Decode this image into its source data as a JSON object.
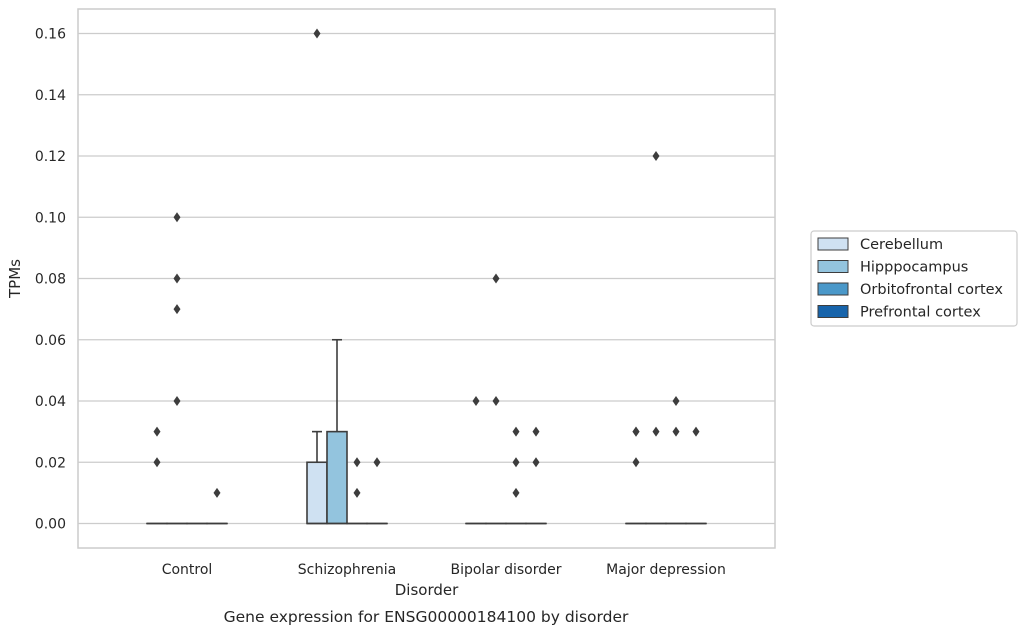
{
  "caption": "Gene expression for ENSG00000184100 by disorder",
  "chart_data": {
    "type": "box",
    "xlabel": "Disorder",
    "ylabel": "TPMs",
    "ylim": [
      -0.008,
      0.168
    ],
    "yticks": [
      "0.00",
      "0.02",
      "0.04",
      "0.06",
      "0.08",
      "0.10",
      "0.12",
      "0.14",
      "0.16"
    ],
    "grid": "horizontal",
    "legend_position": "right",
    "categories": [
      "Control",
      "Schizophrenia",
      "Bipolar disorder",
      "Major depression"
    ],
    "series": [
      {
        "name": "Cerebellum",
        "color": "#cfe1f2",
        "boxes": [
          {
            "q1": 0,
            "median": 0,
            "q3": 0,
            "whisker_low": 0,
            "whisker_high": 0,
            "outliers": [
              0.02,
              0.03
            ]
          },
          {
            "q1": 0,
            "median": 0,
            "q3": 0.02,
            "whisker_low": 0,
            "whisker_high": 0.03,
            "outliers": [
              0.16
            ]
          },
          {
            "q1": 0,
            "median": 0,
            "q3": 0,
            "whisker_low": 0,
            "whisker_high": 0,
            "outliers": [
              0.04
            ]
          },
          {
            "q1": 0,
            "median": 0,
            "q3": 0,
            "whisker_low": 0,
            "whisker_high": 0,
            "outliers": [
              0.02,
              0.03,
              0.03
            ]
          }
        ]
      },
      {
        "name": "Hipppocampus",
        "color": "#93c4de",
        "boxes": [
          {
            "q1": 0,
            "median": 0,
            "q3": 0,
            "whisker_low": 0,
            "whisker_high": 0,
            "outliers": [
              0.04,
              0.07,
              0.08,
              0.1
            ]
          },
          {
            "q1": 0,
            "median": 0,
            "q3": 0.03,
            "whisker_low": 0,
            "whisker_high": 0.06,
            "outliers": []
          },
          {
            "q1": 0,
            "median": 0,
            "q3": 0,
            "whisker_low": 0,
            "whisker_high": 0,
            "outliers": [
              0.04,
              0.08
            ]
          },
          {
            "q1": 0,
            "median": 0,
            "q3": 0,
            "whisker_low": 0,
            "whisker_high": 0,
            "outliers": [
              0.03,
              0.12
            ]
          }
        ]
      },
      {
        "name": "Orbitofrontal cortex",
        "color": "#4a98c9",
        "boxes": [
          {
            "q1": 0,
            "median": 0,
            "q3": 0,
            "whisker_low": 0,
            "whisker_high": 0,
            "outliers": []
          },
          {
            "q1": 0,
            "median": 0,
            "q3": 0,
            "whisker_low": 0,
            "whisker_high": 0,
            "outliers": [
              0.01,
              0.02
            ]
          },
          {
            "q1": 0,
            "median": 0,
            "q3": 0,
            "whisker_low": 0,
            "whisker_high": 0,
            "outliers": [
              0.01,
              0.02,
              0.03
            ]
          },
          {
            "q1": 0,
            "median": 0,
            "q3": 0,
            "whisker_low": 0,
            "whisker_high": 0,
            "outliers": [
              0.03,
              0.04
            ]
          }
        ]
      },
      {
        "name": "Prefrontal cortex",
        "color": "#1764ab",
        "boxes": [
          {
            "q1": 0,
            "median": 0,
            "q3": 0,
            "whisker_low": 0,
            "whisker_high": 0,
            "outliers": [
              0.01
            ]
          },
          {
            "q1": 0,
            "median": 0,
            "q3": 0,
            "whisker_low": 0,
            "whisker_high": 0,
            "outliers": [
              0.02
            ]
          },
          {
            "q1": 0,
            "median": 0,
            "q3": 0,
            "whisker_low": 0,
            "whisker_high": 0,
            "outliers": [
              0.02,
              0.03
            ]
          },
          {
            "q1": 0,
            "median": 0,
            "q3": 0,
            "whisker_low": 0,
            "whisker_high": 0,
            "outliers": [
              0.03
            ]
          }
        ]
      }
    ]
  }
}
